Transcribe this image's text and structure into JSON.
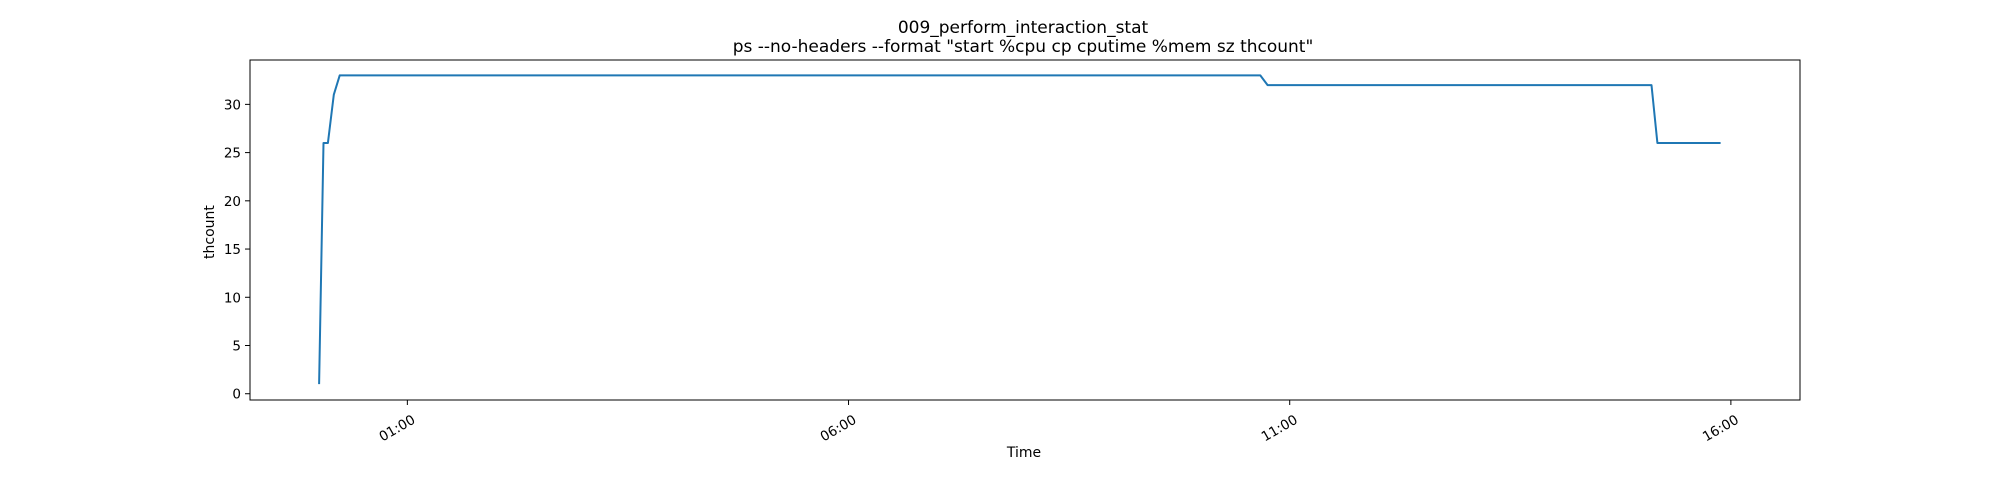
{
  "chart_data": {
    "type": "line",
    "title": "009_perform_interaction_stat",
    "subtitle": "ps --no-headers --format \"start %cpu cp cputime %mem sz thcount\"",
    "xlabel": "Time",
    "ylabel": "thcount",
    "x_axis_type": "time",
    "xlim": [
      "23:13",
      "16:47"
    ],
    "ylim": [
      -0.65,
      34.6
    ],
    "x_ticks": [
      "01:00",
      "06:00",
      "11:00",
      "16:00"
    ],
    "y_ticks": [
      0,
      5,
      10,
      15,
      20,
      25,
      30
    ],
    "grid": false,
    "legend": "none",
    "series": [
      {
        "color": "#1f77b4",
        "points": [
          {
            "x": "00:00",
            "y": 1
          },
          {
            "x": "00:03",
            "y": 26
          },
          {
            "x": "00:06",
            "y": 26
          },
          {
            "x": "00:10",
            "y": 31
          },
          {
            "x": "00:14",
            "y": 33
          },
          {
            "x": "10:40",
            "y": 33
          },
          {
            "x": "10:45",
            "y": 32
          },
          {
            "x": "15:06",
            "y": 32
          },
          {
            "x": "15:10",
            "y": 26
          },
          {
            "x": "15:53",
            "y": 26
          }
        ]
      }
    ]
  }
}
